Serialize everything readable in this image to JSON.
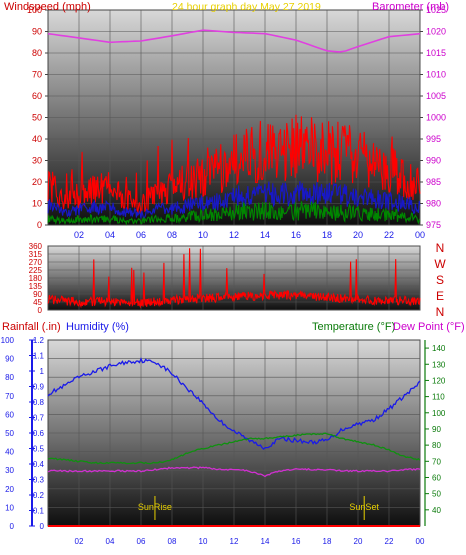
{
  "chart_data": [
    {
      "type": "line",
      "panel": "wind_and_pressure",
      "title": "24 hour graph day   May 27 2019",
      "left_axis_label": "Windspeed (mph)",
      "right_axis_label": "Barometer (mb)",
      "left_ylim": [
        0,
        100
      ],
      "right_ylim": [
        975,
        1025
      ],
      "left_ticks": [
        "0",
        "10",
        "20",
        "30",
        "40",
        "50",
        "60",
        "70",
        "80",
        "90",
        "100"
      ],
      "right_ticks": [
        "975",
        "980",
        "985",
        "990",
        "995",
        "1000",
        "1005",
        "1010",
        "1015",
        "1020",
        "1025"
      ],
      "x_ticks": [
        "02",
        "04",
        "06",
        "08",
        "10",
        "12",
        "14",
        "16",
        "18",
        "20",
        "22",
        "00"
      ],
      "x_range_hours": [
        0,
        24
      ],
      "grid": true,
      "series": [
        {
          "key": "barometer",
          "color": "#e040e0",
          "axis": "right",
          "x": [
            0,
            2,
            4,
            6,
            8,
            10,
            12,
            14,
            16,
            18,
            19,
            20,
            22,
            24
          ],
          "values": [
            1019.5,
            1018.5,
            1017.5,
            1017.8,
            1019,
            1020.3,
            1019.8,
            1019.5,
            1018,
            1015.5,
            1015.2,
            1016.5,
            1018.8,
            1019.5
          ]
        },
        {
          "key": "wind_gust",
          "color": "#ff0000",
          "axis": "left",
          "x": [
            0,
            1,
            2,
            3,
            4,
            5,
            6,
            7,
            8,
            9,
            10,
            11,
            12,
            13,
            14,
            15,
            16,
            17,
            18,
            19,
            20,
            21,
            22,
            23,
            24
          ],
          "values": [
            20,
            12,
            14,
            16,
            18,
            12,
            10,
            14,
            18,
            20,
            22,
            26,
            30,
            34,
            36,
            32,
            36,
            36,
            34,
            34,
            32,
            30,
            26,
            22,
            18
          ]
        },
        {
          "key": "wind_avg",
          "color": "#1818c8",
          "axis": "left",
          "x": [
            0,
            1,
            2,
            3,
            4,
            5,
            6,
            7,
            8,
            9,
            10,
            11,
            12,
            13,
            14,
            15,
            16,
            17,
            18,
            19,
            20,
            21,
            22,
            23,
            24
          ],
          "values": [
            9,
            6,
            7,
            8,
            8,
            6,
            5,
            7,
            8,
            9,
            10,
            11,
            13,
            14,
            15,
            14,
            15,
            15,
            14,
            14,
            13,
            12,
            11,
            10,
            8
          ]
        },
        {
          "key": "wind_low",
          "color": "#008800",
          "axis": "left",
          "x": [
            0,
            1,
            2,
            3,
            4,
            5,
            6,
            7,
            8,
            9,
            10,
            11,
            12,
            13,
            14,
            15,
            16,
            17,
            18,
            19,
            20,
            21,
            22,
            23,
            24
          ],
          "values": [
            3,
            2,
            3,
            3,
            3,
            2,
            2,
            3,
            3,
            4,
            5,
            5,
            6,
            7,
            7,
            6,
            7,
            7,
            6,
            6,
            6,
            5,
            5,
            4,
            3
          ]
        }
      ]
    },
    {
      "type": "line",
      "panel": "wind_direction",
      "right_axis_labels": [
        "N",
        "W",
        "S",
        "E",
        "N"
      ],
      "ylim": [
        0,
        360
      ],
      "left_ticks": [
        "0",
        "45",
        "90",
        "135",
        "180",
        "225",
        "270",
        "315",
        "360"
      ],
      "grid": true,
      "series": [
        {
          "key": "wind_direction",
          "color": "#ff0000",
          "x": [
            0,
            2,
            4,
            6,
            8,
            10,
            12,
            14,
            16,
            18,
            20,
            22,
            24
          ],
          "values": [
            60,
            45,
            50,
            40,
            55,
            65,
            75,
            80,
            85,
            70,
            60,
            50,
            55
          ]
        }
      ]
    },
    {
      "type": "line",
      "panel": "temp_humidity_rain",
      "labels": {
        "rain": "Rainfall (.in)",
        "humidity": "Humidity (%)",
        "temperature": "Temperature (°F)",
        "dew_point": "Dew Point (°F)"
      },
      "humidity_ylim": [
        0,
        100
      ],
      "rain_ylim": [
        0,
        1.2
      ],
      "temp_ylim": [
        30,
        145
      ],
      "humidity_ticks": [
        "0",
        "10",
        "20",
        "30",
        "40",
        "50",
        "60",
        "70",
        "80",
        "90",
        "100"
      ],
      "rain_ticks": [
        "0",
        "0.1",
        "0.2",
        "0.3",
        "0.4",
        "0.5",
        "0.6",
        "0.7",
        "0.8",
        "0.9",
        "1",
        "1.1",
        "1.2"
      ],
      "temp_ticks": [
        "40",
        "50",
        "60",
        "70",
        "80",
        "90",
        "100",
        "110",
        "120",
        "130",
        "140"
      ],
      "x_ticks": [
        "02",
        "04",
        "06",
        "08",
        "10",
        "12",
        "14",
        "16",
        "18",
        "20",
        "22",
        "00"
      ],
      "annotations": [
        {
          "text": "SunRise",
          "hour": 6.9
        },
        {
          "text": "SunSet",
          "hour": 20.4
        }
      ],
      "grid": true,
      "series": [
        {
          "key": "humidity",
          "color": "#1a1ae8",
          "axis": "humidity",
          "x": [
            0,
            1,
            2,
            3,
            4,
            5,
            6,
            7,
            8,
            9,
            10,
            11,
            12,
            13,
            14,
            15,
            16,
            17,
            18,
            19,
            20,
            21,
            22,
            23,
            24
          ],
          "values": [
            71,
            75,
            80,
            83,
            86,
            88,
            89,
            88,
            82,
            74,
            66,
            57,
            51,
            46,
            42,
            47,
            46,
            45,
            46,
            52,
            55,
            57,
            63,
            70,
            77
          ]
        },
        {
          "key": "temperature",
          "color": "#109010",
          "axis": "temp",
          "x": [
            0,
            1,
            2,
            3,
            4,
            5,
            6,
            7,
            8,
            9,
            10,
            11,
            12,
            13,
            14,
            15,
            16,
            17,
            18,
            19,
            20,
            21,
            22,
            23,
            24
          ],
          "values": [
            72,
            71,
            70,
            69,
            69,
            69,
            69,
            69,
            71,
            75,
            78,
            80,
            82,
            84,
            84,
            85,
            86,
            87,
            87,
            84,
            82,
            80,
            77,
            73,
            71
          ]
        },
        {
          "key": "dew_point",
          "color": "#d030d0",
          "axis": "temp",
          "x": [
            0,
            1,
            2,
            3,
            4,
            5,
            6,
            7,
            8,
            9,
            10,
            11,
            12,
            13,
            14,
            15,
            16,
            17,
            18,
            19,
            20,
            21,
            22,
            23,
            24
          ],
          "values": [
            64,
            64,
            64,
            64,
            64,
            64,
            64,
            65,
            66,
            66,
            66,
            65,
            65,
            64,
            61,
            64,
            65,
            65,
            65,
            64,
            64,
            64,
            64,
            65,
            65
          ]
        },
        {
          "key": "rainfall",
          "color": "#ff0000",
          "axis": "rain",
          "x": [
            0,
            24
          ],
          "values": [
            0,
            0
          ]
        }
      ]
    }
  ]
}
